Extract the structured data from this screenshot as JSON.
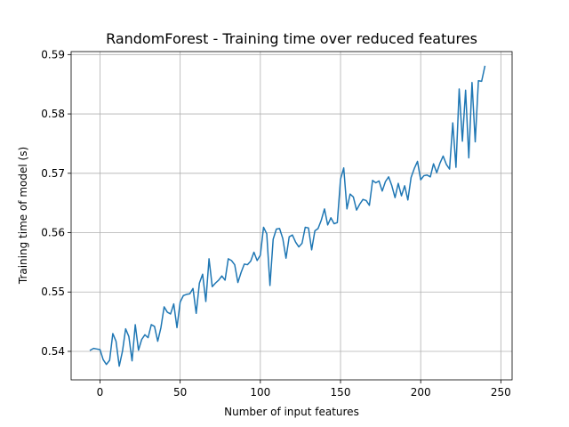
{
  "chart_data": {
    "type": "line",
    "title": "RandomForest - Training time over reduced features",
    "xlabel": "Number of input features",
    "ylabel": "Training time of model (s)",
    "xlim": [
      -18,
      257
    ],
    "ylim": [
      0.5352,
      0.5905
    ],
    "xticks": [
      0,
      50,
      100,
      150,
      200,
      250
    ],
    "yticks": [
      0.54,
      0.55,
      0.56,
      0.57,
      0.58,
      0.59
    ],
    "ytick_labels": [
      "0.54",
      "0.55",
      "0.56",
      "0.57",
      "0.58",
      "0.59"
    ],
    "grid": true,
    "series": [
      {
        "color": "#1f77b4",
        "x": [
          -6,
          -4,
          -2,
          0,
          2,
          4,
          6,
          8,
          10,
          12,
          14,
          16,
          18,
          20,
          22,
          24,
          26,
          28,
          30,
          32,
          34,
          36,
          38,
          40,
          42,
          44,
          46,
          48,
          50,
          52,
          54,
          56,
          58,
          60,
          62,
          64,
          66,
          68,
          70,
          72,
          74,
          76,
          78,
          80,
          82,
          84,
          86,
          88,
          90,
          92,
          94,
          96,
          98,
          100,
          102,
          104,
          106,
          108,
          110,
          112,
          114,
          116,
          118,
          120,
          122,
          124,
          126,
          128,
          130,
          132,
          134,
          136,
          138,
          140,
          142,
          144,
          146,
          148,
          150,
          152,
          154,
          156,
          158,
          160,
          162,
          164,
          166,
          168,
          170,
          172,
          174,
          176,
          178,
          180,
          182,
          184,
          186,
          188,
          190,
          192,
          194,
          196,
          198,
          200,
          202,
          204,
          206,
          208,
          210,
          212,
          214,
          216,
          218,
          220,
          222,
          224,
          226,
          228,
          230,
          232,
          234,
          236,
          238,
          240
        ],
        "y": [
          0.5402,
          0.5405,
          0.5404,
          0.5403,
          0.5386,
          0.5378,
          0.5385,
          0.543,
          0.5417,
          0.5375,
          0.54,
          0.5438,
          0.5425,
          0.5384,
          0.5445,
          0.5402,
          0.542,
          0.5428,
          0.5423,
          0.5445,
          0.5442,
          0.5417,
          0.544,
          0.5475,
          0.5466,
          0.5463,
          0.548,
          0.544,
          0.5483,
          0.5494,
          0.5496,
          0.5497,
          0.5506,
          0.5464,
          0.5515,
          0.553,
          0.5484,
          0.5556,
          0.5509,
          0.5515,
          0.552,
          0.5527,
          0.552,
          0.5556,
          0.5553,
          0.5546,
          0.5516,
          0.5533,
          0.5547,
          0.5546,
          0.5552,
          0.5567,
          0.5553,
          0.5562,
          0.5609,
          0.5598,
          0.5511,
          0.5589,
          0.5606,
          0.5607,
          0.559,
          0.5557,
          0.5593,
          0.5596,
          0.5584,
          0.5576,
          0.5582,
          0.5609,
          0.5608,
          0.5571,
          0.5603,
          0.5607,
          0.5621,
          0.564,
          0.5613,
          0.5625,
          0.5615,
          0.5617,
          0.569,
          0.5709,
          0.564,
          0.5665,
          0.566,
          0.5638,
          0.5648,
          0.5656,
          0.5654,
          0.5646,
          0.5688,
          0.5684,
          0.5687,
          0.567,
          0.5686,
          0.5694,
          0.5679,
          0.5659,
          0.5683,
          0.5662,
          0.5679,
          0.5655,
          0.5693,
          0.5708,
          0.572,
          0.5689,
          0.5696,
          0.5697,
          0.5694,
          0.5716,
          0.5701,
          0.5717,
          0.5729,
          0.5715,
          0.5707,
          0.5785,
          0.571,
          0.5842,
          0.5754,
          0.584,
          0.5726,
          0.5853,
          0.5753,
          0.5856,
          0.5855,
          0.588
        ]
      }
    ]
  }
}
